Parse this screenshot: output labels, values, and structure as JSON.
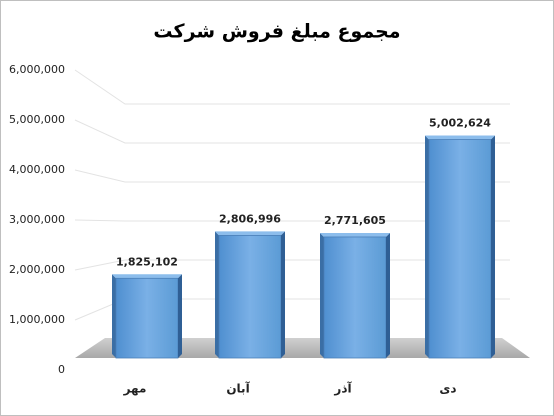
{
  "chart_data": {
    "type": "bar",
    "title": "مجموع مبلغ فروش شرکت",
    "categories": [
      "مهر",
      "آبان",
      "آذر",
      "دی"
    ],
    "values": [
      1825102,
      2806996,
      2771605,
      5002624
    ],
    "value_labels": [
      "1,825,102",
      "2,806,996",
      "2,771,605",
      "5,002,624"
    ],
    "color": "#5b9bd5",
    "ylim": [
      0,
      6000000
    ],
    "yticks": [
      0,
      {
        "value": 1000000,
        "label": "1,000,000"
      },
      {
        "value": 2000000,
        "label": "2,000,000"
      },
      {
        "value": 3000000,
        "label": "3,000,000"
      },
      {
        "value": 4000000,
        "label": "4,000,000"
      },
      {
        "value": 5000000,
        "label": "5,000,000"
      },
      {
        "value": 6000000,
        "label": "6,000,000"
      }
    ],
    "grid": true
  }
}
